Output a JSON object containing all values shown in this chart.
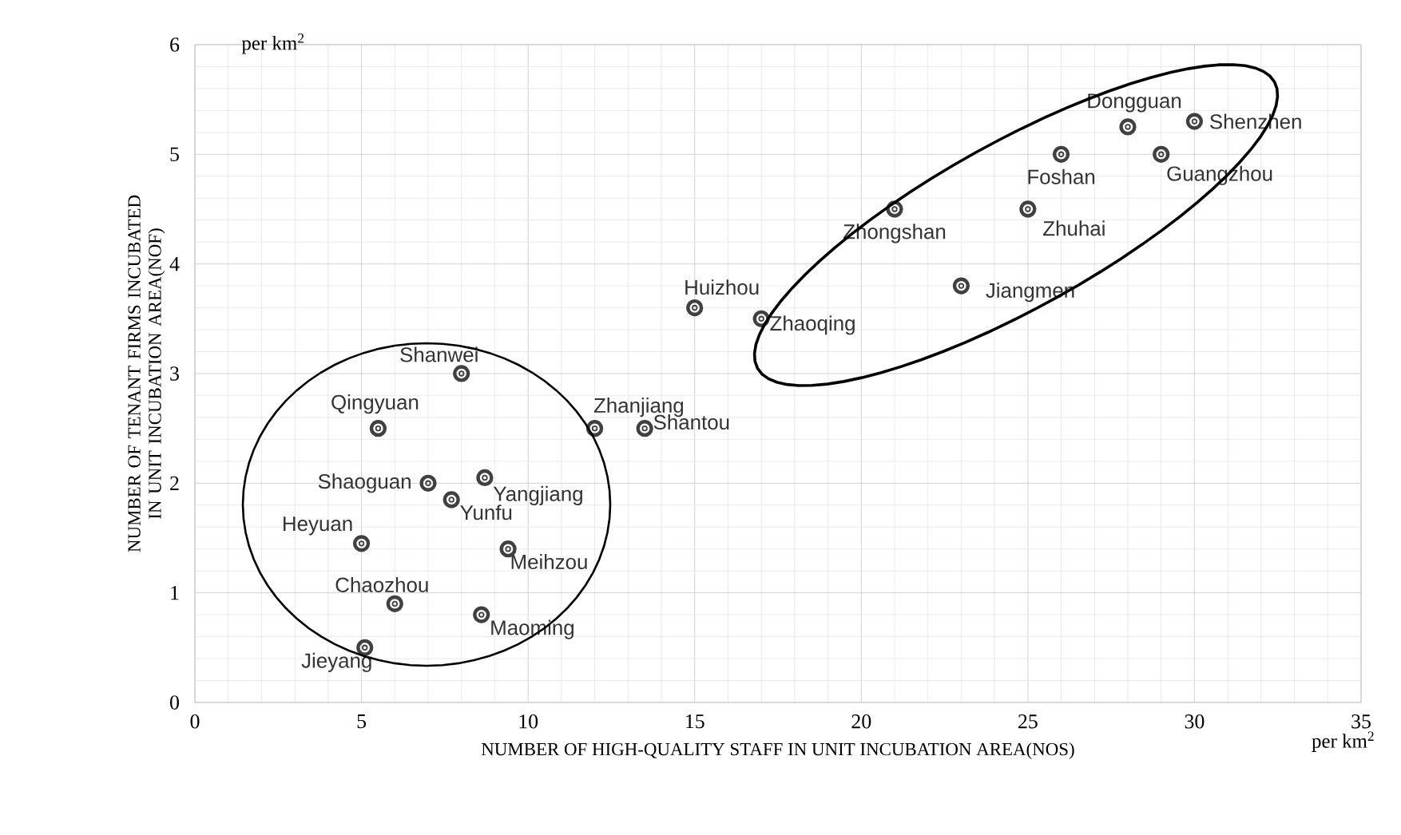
{
  "chart_data": {
    "type": "scatter",
    "xlabel": "NUMBER OF HIGH-QUALITY STAFF IN UNIT INCUBATION AREA(NOS)",
    "ylabel": "NUMBER OF TENANT FIRMS INCUBATED IN UNIT INCUBATION AREA(NOF)",
    "x": [
      28,
      30,
      26,
      29,
      21,
      25,
      23,
      15,
      17,
      8,
      5.5,
      12,
      13.5,
      8.7,
      7,
      7.7,
      5,
      9.4,
      6,
      8.6,
      5.1
    ],
    "series": [
      {
        "color": "#404040",
        "values": [
          5.25,
          5.3,
          5.0,
          5.0,
          4.5,
          4.5,
          3.8,
          3.6,
          3.5,
          3.0,
          2.5,
          2.5,
          2.5,
          2.05,
          2.0,
          1.85,
          1.45,
          1.4,
          0.9,
          0.8,
          0.5
        ]
      }
    ],
    "annotations": [
      {
        "text": "Dongguan",
        "x": 28,
        "y": 5.25
      },
      {
        "text": "Shenzhen",
        "x": 30,
        "y": 5.3
      },
      {
        "text": "Foshan",
        "x": 26,
        "y": 5.0
      },
      {
        "text": "Guangzhou",
        "x": 29,
        "y": 5.0
      },
      {
        "text": "Zhongshan",
        "x": 21,
        "y": 4.5
      },
      {
        "text": "Zhuhai",
        "x": 25,
        "y": 4.5
      },
      {
        "text": "Jiangmen",
        "x": 23,
        "y": 3.8
      },
      {
        "text": "Huizhou",
        "x": 15,
        "y": 3.6
      },
      {
        "text": "Zhaoqing",
        "x": 17,
        "y": 3.5
      },
      {
        "text": "Shanwei",
        "x": 8,
        "y": 3.0
      },
      {
        "text": "Qingyuan",
        "x": 5.5,
        "y": 2.5
      },
      {
        "text": "Zhanjiang",
        "x": 12,
        "y": 2.5
      },
      {
        "text": "Shantou",
        "x": 13.5,
        "y": 2.5
      },
      {
        "text": "Yangjiang",
        "x": 8.7,
        "y": 2.05
      },
      {
        "text": "Shaoguan",
        "x": 7,
        "y": 2.0
      },
      {
        "text": "Yunfu",
        "x": 7.7,
        "y": 1.85
      },
      {
        "text": "Heyuan",
        "x": 5,
        "y": 1.45
      },
      {
        "text": "Meihzou",
        "x": 9.4,
        "y": 1.4
      },
      {
        "text": "Chaozhou",
        "x": 6,
        "y": 0.9
      },
      {
        "text": "Maoming",
        "x": 8.6,
        "y": 0.8
      },
      {
        "text": "Jieyang",
        "x": 5.1,
        "y": 0.5
      },
      "per km$^{2}$",
      "per km$^{2}$"
    ],
    "xlim": [
      0,
      35
    ],
    "xticks": [
      0,
      5,
      10,
      15,
      20,
      25,
      30,
      35
    ],
    "ylim": [
      0,
      6
    ],
    "yticks": [
      0,
      1,
      2,
      3,
      4,
      5,
      6
    ],
    "grid": true,
    "marker": "circle"
  }
}
